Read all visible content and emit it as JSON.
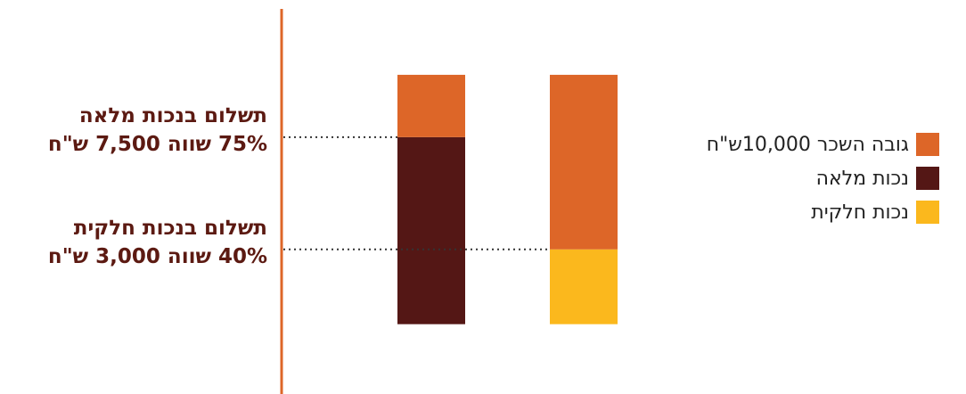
{
  "colors": {
    "salary": "#dd6628",
    "full_disability": "#541715",
    "partial_disability": "#fbb81d",
    "axis": "#dd6628",
    "annotation_text": "#5c1a12",
    "guide_line": "#333333"
  },
  "annotations": [
    {
      "line1": "תשלום בנכות מלאה",
      "line2": "75% שווה 7,500 ש\"ח",
      "level": 7500
    },
    {
      "line1": "תשלום בנכות חלקית",
      "line2": "40% שווה 3,000 ש\"ח",
      "level": 3000
    }
  ],
  "legend": [
    {
      "label": "גובה השכר 10,000ש\"ח",
      "color_key": "salary"
    },
    {
      "label": "נכות מלאה",
      "color_key": "full_disability"
    },
    {
      "label": "נכות חלקית",
      "color_key": "partial_disability"
    }
  ],
  "chart_data": {
    "type": "bar",
    "stacked": true,
    "categories": [
      "",
      ""
    ],
    "series": [
      {
        "name": "נכות מלאה",
        "color_key": "full_disability",
        "values": [
          7500,
          0
        ]
      },
      {
        "name": "נכות חלקית",
        "color_key": "partial_disability",
        "values": [
          0,
          3000
        ]
      },
      {
        "name": "גובה השכר 10,000ש\"ח",
        "color_key": "salary",
        "values": [
          2500,
          7000
        ]
      }
    ],
    "ylim": [
      -2800,
      13000
    ],
    "grid": false,
    "legend_position": "right"
  }
}
